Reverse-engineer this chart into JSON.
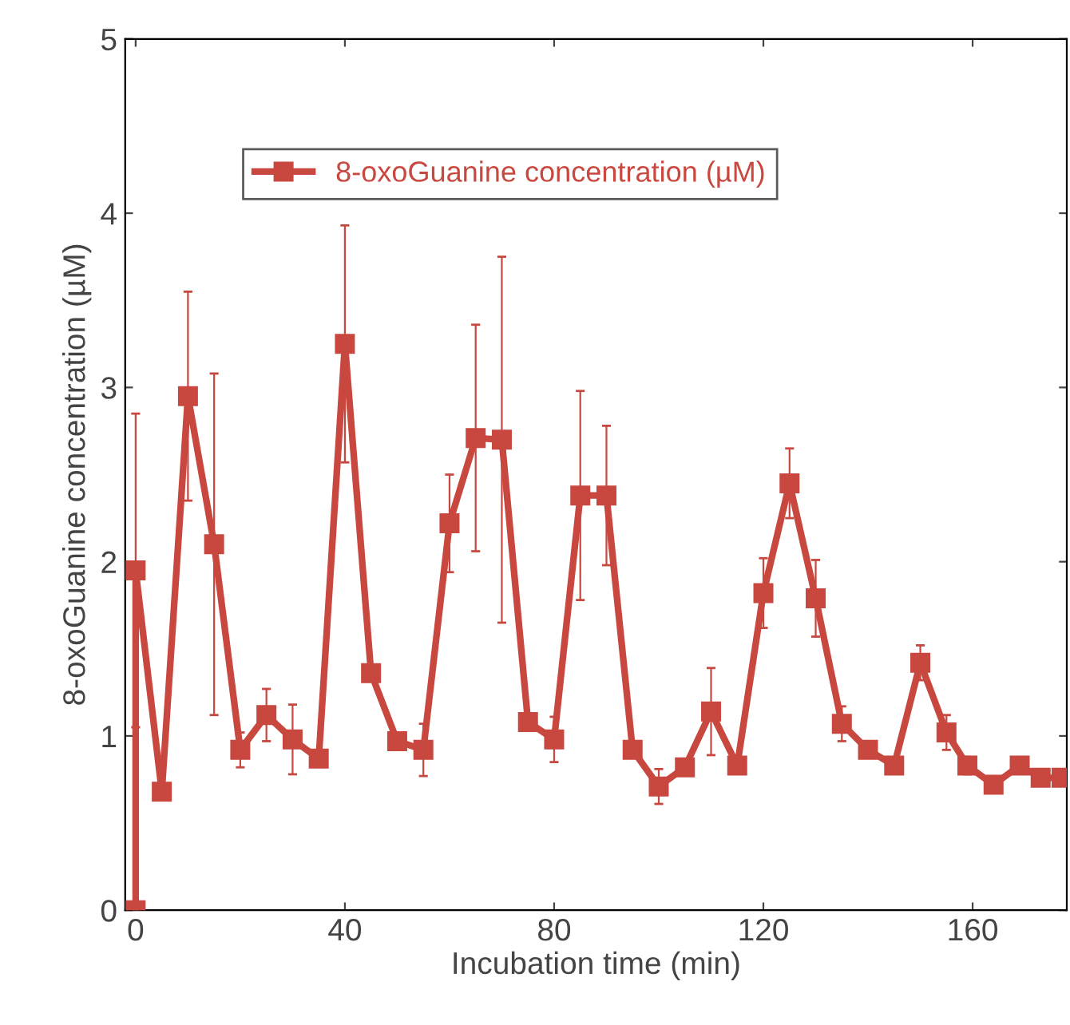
{
  "chart_data": {
    "type": "line",
    "xlabel": "Incubation time (min)",
    "ylabel": "8-oxoGuanine concentration (µM)",
    "x": [
      0,
      0,
      5,
      10,
      15,
      20,
      25,
      30,
      35,
      40,
      45,
      50,
      55,
      60,
      65,
      70,
      75,
      80,
      85,
      90,
      95,
      100,
      105,
      110,
      115,
      120,
      125,
      130,
      135,
      140,
      145,
      150,
      155,
      159,
      164,
      169,
      173,
      177
    ],
    "series": [
      {
        "name": "8-oxoGuanine concentration (µM)",
        "color": "#c8473f",
        "values": [
          0,
          1.95,
          0.68,
          2.95,
          2.1,
          0.92,
          1.12,
          0.98,
          0.87,
          3.25,
          1.36,
          0.97,
          0.92,
          2.22,
          2.71,
          2.7,
          1.08,
          0.98,
          2.38,
          2.38,
          0.92,
          0.71,
          0.82,
          1.14,
          0.83,
          1.82,
          2.45,
          1.79,
          1.07,
          0.92,
          0.83,
          1.42,
          1.02,
          0.83,
          0.72,
          0.83,
          0.76,
          0.76
        ],
        "errors": [
          null,
          0.9,
          null,
          0.6,
          0.98,
          0.1,
          0.15,
          0.2,
          null,
          0.68,
          null,
          null,
          0.15,
          0.28,
          0.65,
          1.05,
          null,
          0.13,
          0.6,
          0.4,
          null,
          0.1,
          null,
          0.25,
          null,
          0.2,
          0.2,
          0.22,
          0.1,
          null,
          null,
          0.1,
          0.1,
          0.05,
          null,
          null,
          null,
          null
        ]
      }
    ],
    "xlim": [
      -2,
      178
    ],
    "ylim": [
      0,
      5
    ],
    "xticks": [
      0,
      40,
      80,
      120,
      160
    ],
    "yticks": [
      0,
      1,
      2,
      3,
      4,
      5
    ],
    "marker": "square",
    "line_style": "solid",
    "legend": "top left",
    "grid": false
  }
}
